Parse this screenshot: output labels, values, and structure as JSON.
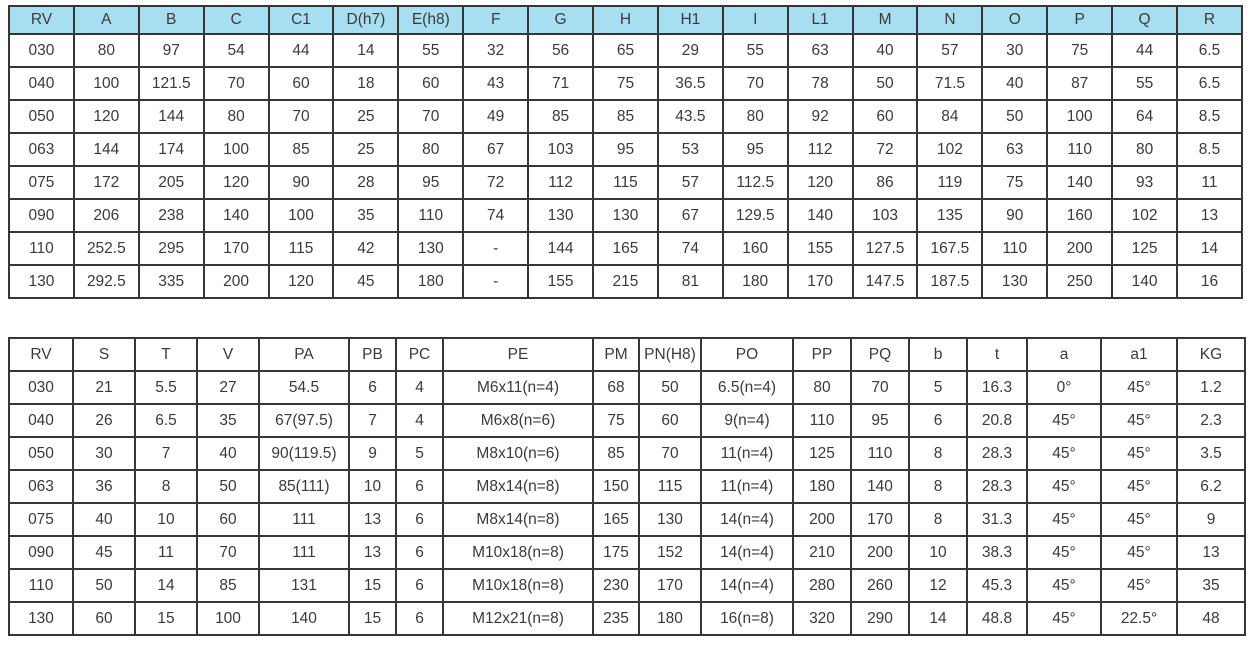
{
  "colors": {
    "table1_header_fill": "#a8def2",
    "table2_header_fill": "#ffffff",
    "border": "#363636",
    "text": "#3a3a3a"
  },
  "table1": {
    "header_fill": "#a8def2",
    "headers": [
      "RV",
      "A",
      "B",
      "C",
      "C1",
      "D(h7)",
      "E(h8)",
      "F",
      "G",
      "H",
      "H1",
      "I",
      "L1",
      "M",
      "N",
      "O",
      "P",
      "Q",
      "R"
    ],
    "rows": [
      [
        "030",
        "80",
        "97",
        "54",
        "44",
        "14",
        "55",
        "32",
        "56",
        "65",
        "29",
        "55",
        "63",
        "40",
        "57",
        "30",
        "75",
        "44",
        "6.5"
      ],
      [
        "040",
        "100",
        "121.5",
        "70",
        "60",
        "18",
        "60",
        "43",
        "71",
        "75",
        "36.5",
        "70",
        "78",
        "50",
        "71.5",
        "40",
        "87",
        "55",
        "6.5"
      ],
      [
        "050",
        "120",
        "144",
        "80",
        "70",
        "25",
        "70",
        "49",
        "85",
        "85",
        "43.5",
        "80",
        "92",
        "60",
        "84",
        "50",
        "100",
        "64",
        "8.5"
      ],
      [
        "063",
        "144",
        "174",
        "100",
        "85",
        "25",
        "80",
        "67",
        "103",
        "95",
        "53",
        "95",
        "112",
        "72",
        "102",
        "63",
        "110",
        "80",
        "8.5"
      ],
      [
        "075",
        "172",
        "205",
        "120",
        "90",
        "28",
        "95",
        "72",
        "112",
        "115",
        "57",
        "112.5",
        "120",
        "86",
        "119",
        "75",
        "140",
        "93",
        "11"
      ],
      [
        "090",
        "206",
        "238",
        "140",
        "100",
        "35",
        "110",
        "74",
        "130",
        "130",
        "67",
        "129.5",
        "140",
        "103",
        "135",
        "90",
        "160",
        "102",
        "13"
      ],
      [
        "110",
        "252.5",
        "295",
        "170",
        "115",
        "42",
        "130",
        "-",
        "144",
        "165",
        "74",
        "160",
        "155",
        "127.5",
        "167.5",
        "110",
        "200",
        "125",
        "14"
      ],
      [
        "130",
        "292.5",
        "335",
        "200",
        "120",
        "45",
        "180",
        "-",
        "155",
        "215",
        "81",
        "180",
        "170",
        "147.5",
        "187.5",
        "130",
        "250",
        "140",
        "16"
      ]
    ]
  },
  "table2": {
    "header_fill": "#ffffff",
    "headers": [
      "RV",
      "S",
      "T",
      "V",
      "PA",
      "PB",
      "PC",
      "PE",
      "PM",
      "PN(H8)",
      "PO",
      "PP",
      "PQ",
      "b",
      "t",
      "a",
      "a1",
      "KG"
    ],
    "rows": [
      [
        "030",
        "21",
        "5.5",
        "27",
        "54.5",
        "6",
        "4",
        "M6x11(n=4)",
        "68",
        "50",
        "6.5(n=4)",
        "80",
        "70",
        "5",
        "16.3",
        "0°",
        "45°",
        "1.2"
      ],
      [
        "040",
        "26",
        "6.5",
        "35",
        "67(97.5)",
        "7",
        "4",
        "M6x8(n=6)",
        "75",
        "60",
        "9(n=4)",
        "110",
        "95",
        "6",
        "20.8",
        "45°",
        "45°",
        "2.3"
      ],
      [
        "050",
        "30",
        "7",
        "40",
        "90(119.5)",
        "9",
        "5",
        "M8x10(n=6)",
        "85",
        "70",
        "11(n=4)",
        "125",
        "110",
        "8",
        "28.3",
        "45°",
        "45°",
        "3.5"
      ],
      [
        "063",
        "36",
        "8",
        "50",
        "85(111)",
        "10",
        "6",
        "M8x14(n=8)",
        "150",
        "115",
        "11(n=4)",
        "180",
        "140",
        "8",
        "28.3",
        "45°",
        "45°",
        "6.2"
      ],
      [
        "075",
        "40",
        "10",
        "60",
        "111",
        "13",
        "6",
        "M8x14(n=8)",
        "165",
        "130",
        "14(n=4)",
        "200",
        "170",
        "8",
        "31.3",
        "45°",
        "45°",
        "9"
      ],
      [
        "090",
        "45",
        "11",
        "70",
        "111",
        "13",
        "6",
        "M10x18(n=8)",
        "175",
        "152",
        "14(n=4)",
        "210",
        "200",
        "10",
        "38.3",
        "45°",
        "45°",
        "13"
      ],
      [
        "110",
        "50",
        "14",
        "85",
        "131",
        "15",
        "6",
        "M10x18(n=8)",
        "230",
        "170",
        "14(n=4)",
        "280",
        "260",
        "12",
        "45.3",
        "45°",
        "45°",
        "35"
      ],
      [
        "130",
        "60",
        "15",
        "100",
        "140",
        "15",
        "6",
        "M12x21(n=8)",
        "235",
        "180",
        "16(n=8)",
        "320",
        "290",
        "14",
        "48.8",
        "45°",
        "22.5°",
        "48"
      ]
    ]
  }
}
